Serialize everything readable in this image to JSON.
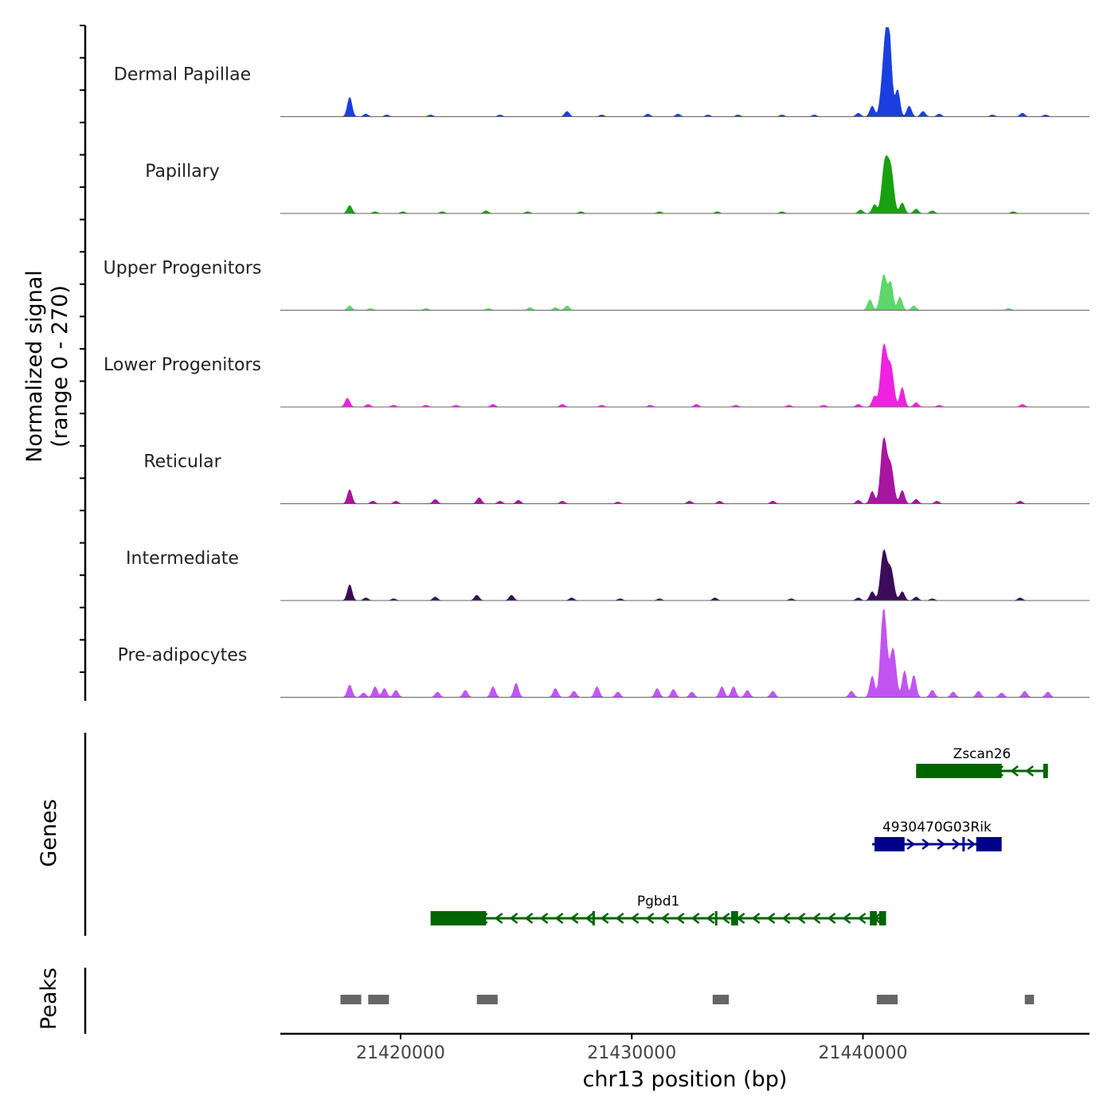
{
  "chart_data": {
    "type": "area",
    "title": "",
    "ylabel_line1": "Normalized signal",
    "ylabel_line2": "(range 0 - 270)",
    "xlabel": "chr13 position (bp)",
    "xlim": [
      21414800,
      21449800
    ],
    "ylim": [
      0,
      270
    ],
    "x_ticks": [
      {
        "value": 21420000,
        "label": "21420000"
      },
      {
        "value": 21430000,
        "label": "21430000"
      },
      {
        "value": 21440000,
        "label": "21440000"
      }
    ],
    "tracks": [
      {
        "name": "Dermal Papillae",
        "color": "#1a3fe0",
        "peaks": [
          [
            21417800,
            0.22
          ],
          [
            21418500,
            0.03
          ],
          [
            21419400,
            0.02
          ],
          [
            21421300,
            0.02
          ],
          [
            21424300,
            0.02
          ],
          [
            21427200,
            0.06
          ],
          [
            21428700,
            0.02
          ],
          [
            21430700,
            0.03
          ],
          [
            21432000,
            0.03
          ],
          [
            21433300,
            0.02
          ],
          [
            21434600,
            0.02
          ],
          [
            21436500,
            0.02
          ],
          [
            21437900,
            0.02
          ],
          [
            21439800,
            0.04
          ],
          [
            21440400,
            0.12
          ],
          [
            21440900,
            0.45
          ],
          [
            21441100,
            1.0
          ],
          [
            21441500,
            0.3
          ],
          [
            21442000,
            0.12
          ],
          [
            21442600,
            0.06
          ],
          [
            21443300,
            0.03
          ],
          [
            21445600,
            0.02
          ],
          [
            21446900,
            0.04
          ],
          [
            21447900,
            0.02
          ]
        ]
      },
      {
        "name": "Papillary",
        "color": "#18a010",
        "peaks": [
          [
            21417800,
            0.09
          ],
          [
            21418900,
            0.02
          ],
          [
            21420100,
            0.02
          ],
          [
            21421800,
            0.02
          ],
          [
            21423700,
            0.03
          ],
          [
            21425500,
            0.02
          ],
          [
            21427800,
            0.02
          ],
          [
            21431200,
            0.02
          ],
          [
            21433700,
            0.02
          ],
          [
            21436500,
            0.02
          ],
          [
            21439900,
            0.04
          ],
          [
            21440500,
            0.1
          ],
          [
            21440950,
            0.55
          ],
          [
            21441200,
            0.48
          ],
          [
            21441700,
            0.12
          ],
          [
            21442300,
            0.05
          ],
          [
            21443000,
            0.03
          ],
          [
            21446500,
            0.02
          ]
        ]
      },
      {
        "name": "Upper Progenitors",
        "color": "#5ed66a",
        "peaks": [
          [
            21417800,
            0.05
          ],
          [
            21418700,
            0.02
          ],
          [
            21421100,
            0.02
          ],
          [
            21423800,
            0.02
          ],
          [
            21425600,
            0.03
          ],
          [
            21426700,
            0.03
          ],
          [
            21427200,
            0.05
          ],
          [
            21440300,
            0.12
          ],
          [
            21440900,
            0.4
          ],
          [
            21441200,
            0.3
          ],
          [
            21441600,
            0.15
          ],
          [
            21442200,
            0.05
          ],
          [
            21446300,
            0.02
          ]
        ]
      },
      {
        "name": "Lower Progenitors",
        "color": "#ee22e0",
        "peaks": [
          [
            21417700,
            0.1
          ],
          [
            21418600,
            0.03
          ],
          [
            21419700,
            0.02
          ],
          [
            21421100,
            0.02
          ],
          [
            21422400,
            0.02
          ],
          [
            21424000,
            0.03
          ],
          [
            21427000,
            0.03
          ],
          [
            21428700,
            0.02
          ],
          [
            21430800,
            0.02
          ],
          [
            21432800,
            0.03
          ],
          [
            21434500,
            0.02
          ],
          [
            21436800,
            0.02
          ],
          [
            21438300,
            0.02
          ],
          [
            21439800,
            0.03
          ],
          [
            21440500,
            0.12
          ],
          [
            21440900,
            0.68
          ],
          [
            21441200,
            0.45
          ],
          [
            21441700,
            0.22
          ],
          [
            21442300,
            0.05
          ],
          [
            21443300,
            0.02
          ],
          [
            21446900,
            0.03
          ]
        ]
      },
      {
        "name": "Reticular",
        "color": "#a8159f",
        "peaks": [
          [
            21417800,
            0.16
          ],
          [
            21418800,
            0.03
          ],
          [
            21419800,
            0.03
          ],
          [
            21421500,
            0.05
          ],
          [
            21423400,
            0.07
          ],
          [
            21424300,
            0.03
          ],
          [
            21425100,
            0.04
          ],
          [
            21427000,
            0.03
          ],
          [
            21429400,
            0.02
          ],
          [
            21432500,
            0.03
          ],
          [
            21433800,
            0.03
          ],
          [
            21436100,
            0.03
          ],
          [
            21439800,
            0.04
          ],
          [
            21440400,
            0.14
          ],
          [
            21440900,
            0.72
          ],
          [
            21441200,
            0.42
          ],
          [
            21441700,
            0.15
          ],
          [
            21442300,
            0.05
          ],
          [
            21443200,
            0.03
          ],
          [
            21446800,
            0.03
          ]
        ]
      },
      {
        "name": "Intermediate",
        "color": "#3a0c5a",
        "peaks": [
          [
            21417800,
            0.18
          ],
          [
            21418500,
            0.03
          ],
          [
            21419700,
            0.02
          ],
          [
            21421500,
            0.04
          ],
          [
            21423300,
            0.06
          ],
          [
            21424800,
            0.06
          ],
          [
            21427400,
            0.03
          ],
          [
            21429500,
            0.02
          ],
          [
            21431200,
            0.02
          ],
          [
            21433600,
            0.03
          ],
          [
            21436900,
            0.02
          ],
          [
            21439800,
            0.03
          ],
          [
            21440400,
            0.1
          ],
          [
            21440900,
            0.55
          ],
          [
            21441200,
            0.35
          ],
          [
            21441700,
            0.1
          ],
          [
            21442300,
            0.04
          ],
          [
            21443000,
            0.02
          ],
          [
            21446800,
            0.03
          ]
        ]
      },
      {
        "name": "Pre-adipocytes",
        "color": "#c155f0",
        "peaks": [
          [
            21417800,
            0.14
          ],
          [
            21418400,
            0.05
          ],
          [
            21418900,
            0.12
          ],
          [
            21419300,
            0.1
          ],
          [
            21419800,
            0.08
          ],
          [
            21421600,
            0.06
          ],
          [
            21422800,
            0.08
          ],
          [
            21424000,
            0.12
          ],
          [
            21425000,
            0.16
          ],
          [
            21426700,
            0.1
          ],
          [
            21427500,
            0.07
          ],
          [
            21428500,
            0.12
          ],
          [
            21429400,
            0.06
          ],
          [
            21431100,
            0.1
          ],
          [
            21431800,
            0.09
          ],
          [
            21432600,
            0.06
          ],
          [
            21433900,
            0.12
          ],
          [
            21434400,
            0.12
          ],
          [
            21435000,
            0.08
          ],
          [
            21436100,
            0.07
          ],
          [
            21439500,
            0.07
          ],
          [
            21440400,
            0.24
          ],
          [
            21440900,
            1.0
          ],
          [
            21441300,
            0.55
          ],
          [
            21441800,
            0.3
          ],
          [
            21442200,
            0.25
          ],
          [
            21443000,
            0.08
          ],
          [
            21443900,
            0.06
          ],
          [
            21445000,
            0.07
          ],
          [
            21446000,
            0.05
          ],
          [
            21447000,
            0.07
          ],
          [
            21448000,
            0.06
          ]
        ]
      }
    ],
    "genes_track": {
      "label": "Genes",
      "genes": [
        {
          "name": "Zscan26",
          "strand": "-",
          "color": "#006400",
          "start": 21442300,
          "end": 21448000,
          "exons": [
            [
              21442300,
              21446000
            ],
            [
              21447800,
              21448000
            ]
          ]
        },
        {
          "name": "4930470G03Rik",
          "strand": "+",
          "color": "#00008b",
          "start": 21440400,
          "end": 21446000,
          "exons": [
            [
              21440500,
              21441800
            ],
            [
              21444300,
              21444400
            ],
            [
              21444900,
              21446000
            ]
          ]
        },
        {
          "name": "Pgbd1",
          "strand": "-",
          "color": "#006400",
          "start": 21421300,
          "end": 21441000,
          "exons": [
            [
              21421300,
              21423700
            ],
            [
              21428300,
              21428400
            ],
            [
              21433600,
              21433700
            ],
            [
              21434300,
              21434600
            ],
            [
              21440300,
              21440600
            ],
            [
              21440700,
              21441000
            ]
          ]
        }
      ]
    },
    "peaks_track": {
      "label": "Peaks",
      "color": "#666666",
      "regions": [
        [
          21417400,
          21418300
        ],
        [
          21418600,
          21419500
        ],
        [
          21423300,
          21424200
        ],
        [
          21433500,
          21434200
        ],
        [
          21440600,
          21441500
        ],
        [
          21447000,
          21447400
        ]
      ]
    }
  }
}
